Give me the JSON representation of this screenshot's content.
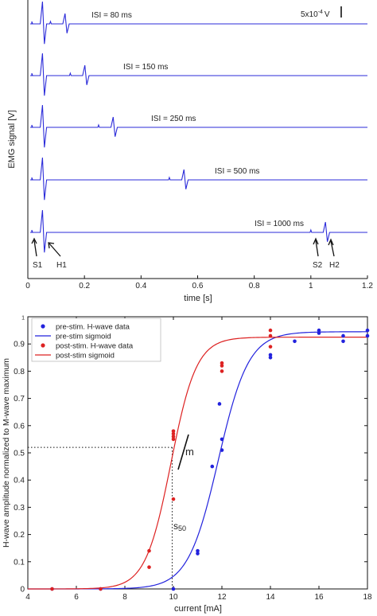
{
  "chart_data": [
    {
      "type": "line",
      "ylabel": "EMG signal [V]",
      "xlabel": "time [s]",
      "xlim": [
        0,
        1.2
      ],
      "x_ticks": [
        "0",
        "0.2",
        "0.4",
        "0.6",
        "0.8",
        "1",
        "1.2"
      ],
      "scale_bar_label": "5x10",
      "scale_bar_exponent": "-4",
      "scale_bar_unit": "V",
      "line_color": "#2b2bd9",
      "traces": [
        {
          "label": "ISI = 80 ms",
          "isi_s": 0.08
        },
        {
          "label": "ISI = 150 ms",
          "isi_s": 0.15
        },
        {
          "label": "ISI = 250 ms",
          "isi_s": 0.25
        },
        {
          "label": "ISI = 500 ms",
          "isi_s": 0.5
        },
        {
          "label": "ISI = 1000 ms",
          "isi_s": 1.0
        }
      ],
      "annotations": [
        {
          "text": "S1",
          "x": 0.0
        },
        {
          "text": "H1",
          "x": 0.05
        },
        {
          "text": "S2",
          "x": 1.0
        },
        {
          "text": "H2",
          "x": 1.05
        }
      ]
    },
    {
      "type": "scatter",
      "xlabel": "current [mA]",
      "ylabel": "H-wave amplitude normalized to M-wave maximum",
      "xlim": [
        4,
        18
      ],
      "ylim": [
        0,
        1
      ],
      "x_ticks": [
        "4",
        "6",
        "8",
        "10",
        "12",
        "14",
        "16",
        "18"
      ],
      "y_ticks": [
        "0",
        "0.1",
        "0.2",
        "0.3",
        "0.4",
        "0.5",
        "0.6",
        "0.7",
        "0.8",
        "0.9",
        "1"
      ],
      "legend_position": "top-left",
      "series": [
        {
          "name": "pre-stim. H-wave data",
          "kind": "scatter",
          "color": "#2222dd",
          "points": [
            [
              5,
              0
            ],
            [
              7,
              0
            ],
            [
              10,
              0
            ],
            [
              11,
              0.13
            ],
            [
              11,
              0.14
            ],
            [
              11.6,
              0.45
            ],
            [
              11.9,
              0.68
            ],
            [
              12,
              0.51
            ],
            [
              12,
              0.55
            ],
            [
              14,
              0.85
            ],
            [
              14,
              0.86
            ],
            [
              15,
              0.91
            ],
            [
              16,
              0.94
            ],
            [
              16,
              0.95
            ],
            [
              17,
              0.91
            ],
            [
              17,
              0.93
            ],
            [
              18,
              0.93
            ],
            [
              18,
              0.95
            ]
          ]
        },
        {
          "name": "pre-stim sigmoid",
          "kind": "line",
          "color": "#2222dd",
          "sigmoid": {
            "max": 0.945,
            "center": 11.85,
            "slope": 1.6
          }
        },
        {
          "name": "post-stim. H-wave data",
          "kind": "scatter",
          "color": "#dd2222",
          "points": [
            [
              5,
              0
            ],
            [
              7,
              0
            ],
            [
              9,
              0.08
            ],
            [
              9,
              0.14
            ],
            [
              10,
              0.33
            ],
            [
              10,
              0.55
            ],
            [
              10,
              0.56
            ],
            [
              10,
              0.57
            ],
            [
              10,
              0.58
            ],
            [
              12,
              0.8
            ],
            [
              12,
              0.82
            ],
            [
              12,
              0.83
            ],
            [
              14,
              0.89
            ],
            [
              14,
              0.93
            ],
            [
              14,
              0.95
            ]
          ]
        },
        {
          "name": "post-stim sigmoid",
          "kind": "line",
          "color": "#dd2222",
          "sigmoid": {
            "max": 0.925,
            "center": 9.9,
            "slope": 1.9
          }
        }
      ],
      "annotations": {
        "s50_label": "s",
        "s50_subscript": "50",
        "s50_x": 9.95,
        "half_max_y": 0.52,
        "slope_label": "m"
      }
    }
  ]
}
